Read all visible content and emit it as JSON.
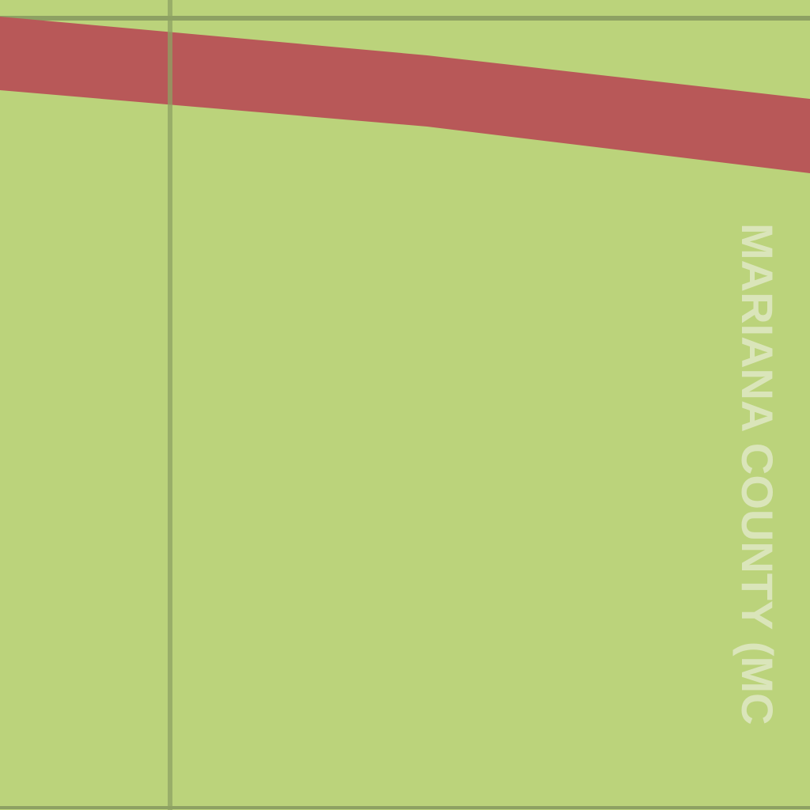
{
  "map": {
    "background_color": "#bbd37b",
    "grid_line_color": "#8da163",
    "road_color": "#b85858",
    "label_color": "#dce6be",
    "region_label": "MARIANA COUNTY (MC"
  }
}
